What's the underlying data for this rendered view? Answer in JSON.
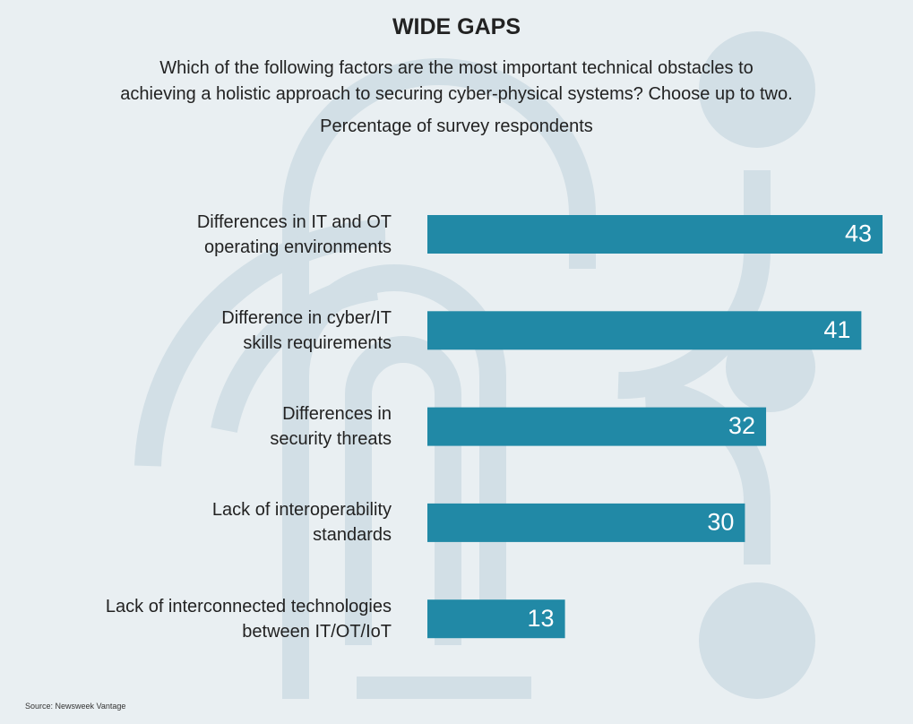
{
  "chart_data": {
    "type": "barh",
    "title": "WIDE GAPS",
    "subtitle": "Which of the following factors are the most important technical obstacles to\nachieving a holistic approach to securing cyber-physical systems? Choose up to two.",
    "axis_label": "Percentage of survey respondents",
    "categories": [
      "Differences in IT and OT\noperating environments",
      "Difference in cyber/IT\nskills requirements",
      "Differences in\nsecurity threats",
      "Lack of interoperability\nstandards",
      "Lack of interconnected technologies\nbetween IT/OT/IoT"
    ],
    "values": [
      43,
      41,
      32,
      30,
      13
    ],
    "color": "#2189a6",
    "source": "Source: Newsweek Vantage"
  }
}
